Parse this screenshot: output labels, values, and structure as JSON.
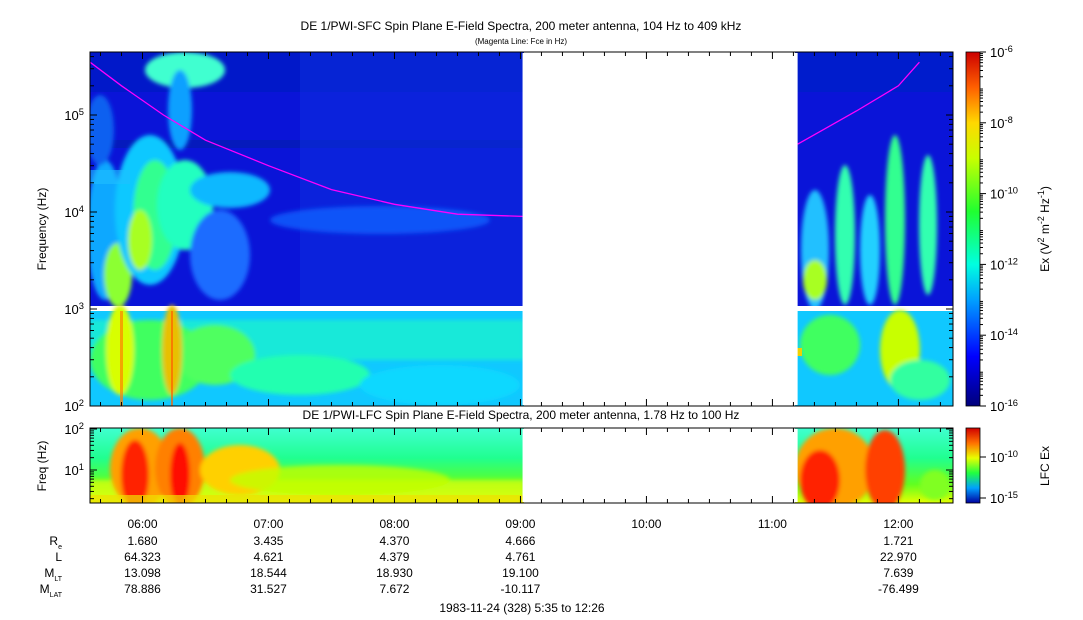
{
  "chart_data": [
    {
      "type": "heatmap",
      "title": "DE 1/PWI-SFC  Spin Plane E-Field Spectra, 200 meter antenna, 104 Hz to 409 kHz",
      "subtitle": "(Magenta Line: Fce in Hz)",
      "xlabel": "",
      "ylabel": "Frequency (Hz)",
      "y_scale": "log",
      "ylim": [
        100,
        409000
      ],
      "y_ticks": [
        {
          "value": 100,
          "base": "10",
          "exp": "2"
        },
        {
          "value": 1000,
          "base": "10",
          "exp": "3"
        },
        {
          "value": 10000,
          "base": "10",
          "exp": "4"
        },
        {
          "value": 100000,
          "base": "10",
          "exp": "5"
        }
      ],
      "colorbar": {
        "label_parts": [
          "Ex (V",
          "2",
          " m",
          "-2",
          " Hz",
          "-1",
          ")"
        ],
        "scale": "log",
        "range": [
          1e-16,
          1e-06
        ],
        "ticks": [
          {
            "base": "10",
            "exp": "-6"
          },
          {
            "base": "10",
            "exp": "-8"
          },
          {
            "base": "10",
            "exp": "-10"
          },
          {
            "base": "10",
            "exp": "-12"
          },
          {
            "base": "10",
            "exp": "-14"
          },
          {
            "base": "10",
            "exp": "-16"
          }
        ]
      },
      "data_gaps": [
        {
          "start": "09:01",
          "end": "11:12"
        }
      ],
      "series": [
        {
          "name": "Fce",
          "color": "#ff00ff",
          "points": [
            {
              "x": "05:35",
              "y": 350000
            },
            {
              "x": "05:50",
              "y": 200000
            },
            {
              "x": "06:10",
              "y": 100000
            },
            {
              "x": "06:30",
              "y": 55000
            },
            {
              "x": "07:00",
              "y": 30000
            },
            {
              "x": "07:30",
              "y": 17000
            },
            {
              "x": "08:00",
              "y": 12000
            },
            {
              "x": "08:30",
              "y": 9500
            },
            {
              "x": "09:01",
              "y": 9000
            },
            {
              "x": "11:12",
              "y": 50000
            },
            {
              "x": "11:40",
              "y": 110000
            },
            {
              "x": "12:00",
              "y": 200000
            },
            {
              "x": "12:10",
              "y": 350000
            }
          ]
        }
      ]
    },
    {
      "type": "heatmap",
      "title": "DE 1/PWI-LFC  Spin Plane E-Field Spectra, 200 meter antenna, 1.78 Hz to 100 Hz",
      "xlabel": "1983-11-24 (328) 5:35 to 12:26",
      "ylabel": "Freq (Hz)",
      "y_scale": "log",
      "ylim": [
        1.78,
        100
      ],
      "y_ticks": [
        {
          "value": 10,
          "base": "10",
          "exp": "1"
        },
        {
          "value": 100,
          "base": "10",
          "exp": "2"
        }
      ],
      "colorbar": {
        "label": "LFC Ex",
        "scale": "log",
        "ticks": [
          {
            "base": "10",
            "exp": "-10"
          },
          {
            "base": "10",
            "exp": "-15"
          }
        ]
      },
      "data_gaps": [
        {
          "start": "09:01",
          "end": "11:12"
        }
      ],
      "x_range": [
        "05:35",
        "12:26"
      ],
      "x_ticks": [
        "06:00",
        "07:00",
        "08:00",
        "09:00",
        "10:00",
        "11:00",
        "12:00"
      ]
    }
  ],
  "ephemeris": {
    "rows": [
      {
        "base": "R",
        "sub": "e",
        "values": [
          "1.680",
          "3.435",
          "4.370",
          "4.666",
          "",
          "",
          "1.721"
        ]
      },
      {
        "base": "L",
        "sub": "",
        "values": [
          "64.323",
          "4.621",
          "4.379",
          "4.761",
          "",
          "",
          "22.970"
        ]
      },
      {
        "base": "M",
        "sub": "LT",
        "values": [
          "13.098",
          "18.544",
          "18.930",
          "19.100",
          "",
          "",
          "7.639"
        ]
      },
      {
        "base": "M",
        "sub": "LAT",
        "values": [
          "78.886",
          "31.527",
          "7.672",
          "-10.117",
          "",
          "",
          "-76.499"
        ]
      }
    ]
  }
}
